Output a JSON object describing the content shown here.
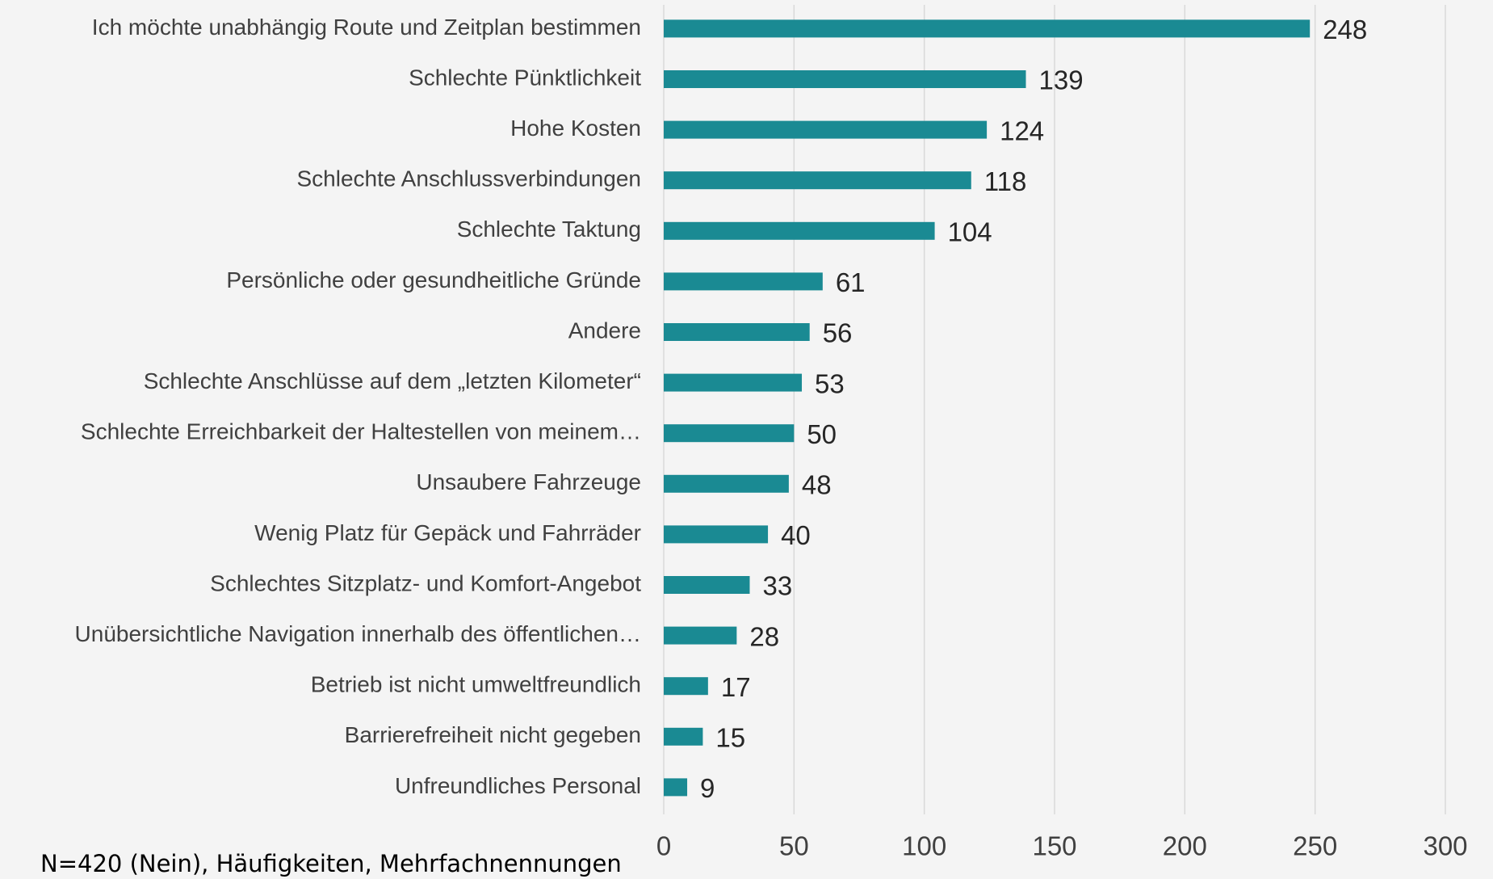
{
  "chart_data": {
    "type": "bar",
    "orientation": "horizontal",
    "categories": [
      "Ich möchte unabhängig Route und Zeitplan bestimmen",
      "Schlechte Pünktlichkeit",
      "Hohe Kosten",
      "Schlechte Anschlussverbindungen",
      "Schlechte Taktung",
      "Persönliche oder gesundheitliche Gründe",
      "Andere",
      "Schlechte Anschlüsse auf dem „letzten Kilometer“",
      "Schlechte Erreichbarkeit der Haltestellen von meinem…",
      "Unsaubere Fahrzeuge",
      "Wenig Platz für Gepäck und Fahrräder",
      "Schlechtes Sitzplatz- und Komfort-Angebot",
      "Unübersichtliche Navigation innerhalb des öffentlichen…",
      "Betrieb ist nicht umweltfreundlich",
      "Barrierefreiheit nicht gegeben",
      "Unfreundliches Personal"
    ],
    "values": [
      248,
      139,
      124,
      118,
      104,
      61,
      56,
      53,
      50,
      48,
      40,
      33,
      28,
      17,
      15,
      9
    ],
    "color": "#1a8a93",
    "xlim": [
      0,
      300
    ],
    "xticks": [
      0,
      50,
      100,
      150,
      200,
      250,
      300
    ],
    "grid": true,
    "note": "N=420 (Nein), Häufigkeiten, Mehrfachnennungen"
  }
}
